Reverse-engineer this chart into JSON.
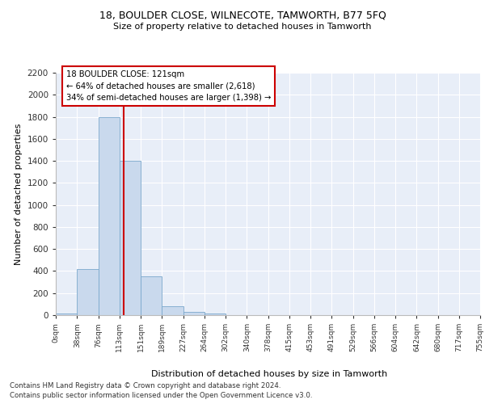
{
  "title_line1": "18, BOULDER CLOSE, WILNECOTE, TAMWORTH, B77 5FQ",
  "title_line2": "Size of property relative to detached houses in Tamworth",
  "xlabel": "Distribution of detached houses by size in Tamworth",
  "ylabel": "Number of detached properties",
  "bin_edges": [
    0,
    38,
    76,
    113,
    151,
    189,
    227,
    264,
    302,
    340,
    378,
    415,
    453,
    491,
    529,
    566,
    604,
    642,
    680,
    717,
    755
  ],
  "bin_labels": [
    "0sqm",
    "38sqm",
    "76sqm",
    "113sqm",
    "151sqm",
    "189sqm",
    "227sqm",
    "264sqm",
    "302sqm",
    "340sqm",
    "378sqm",
    "415sqm",
    "453sqm",
    "491sqm",
    "529sqm",
    "566sqm",
    "604sqm",
    "642sqm",
    "680sqm",
    "717sqm",
    "755sqm"
  ],
  "bar_heights": [
    15,
    420,
    1800,
    1400,
    350,
    80,
    30,
    15,
    0,
    0,
    0,
    0,
    0,
    0,
    0,
    0,
    0,
    0,
    0,
    0
  ],
  "bar_color": "#c9d9ed",
  "bar_edge_color": "#7aa8cc",
  "ylim": [
    0,
    2200
  ],
  "yticks": [
    0,
    200,
    400,
    600,
    800,
    1000,
    1200,
    1400,
    1600,
    1800,
    2000,
    2200
  ],
  "property_size": 121,
  "vline_color": "#cc0000",
  "annotation_text": "18 BOULDER CLOSE: 121sqm\n← 64% of detached houses are smaller (2,618)\n34% of semi-detached houses are larger (1,398) →",
  "annotation_box_color": "#ffffff",
  "annotation_box_edge_color": "#cc0000",
  "bg_color": "#e8eef8",
  "grid_color": "#ffffff",
  "footer_line1": "Contains HM Land Registry data © Crown copyright and database right 2024.",
  "footer_line2": "Contains public sector information licensed under the Open Government Licence v3.0."
}
